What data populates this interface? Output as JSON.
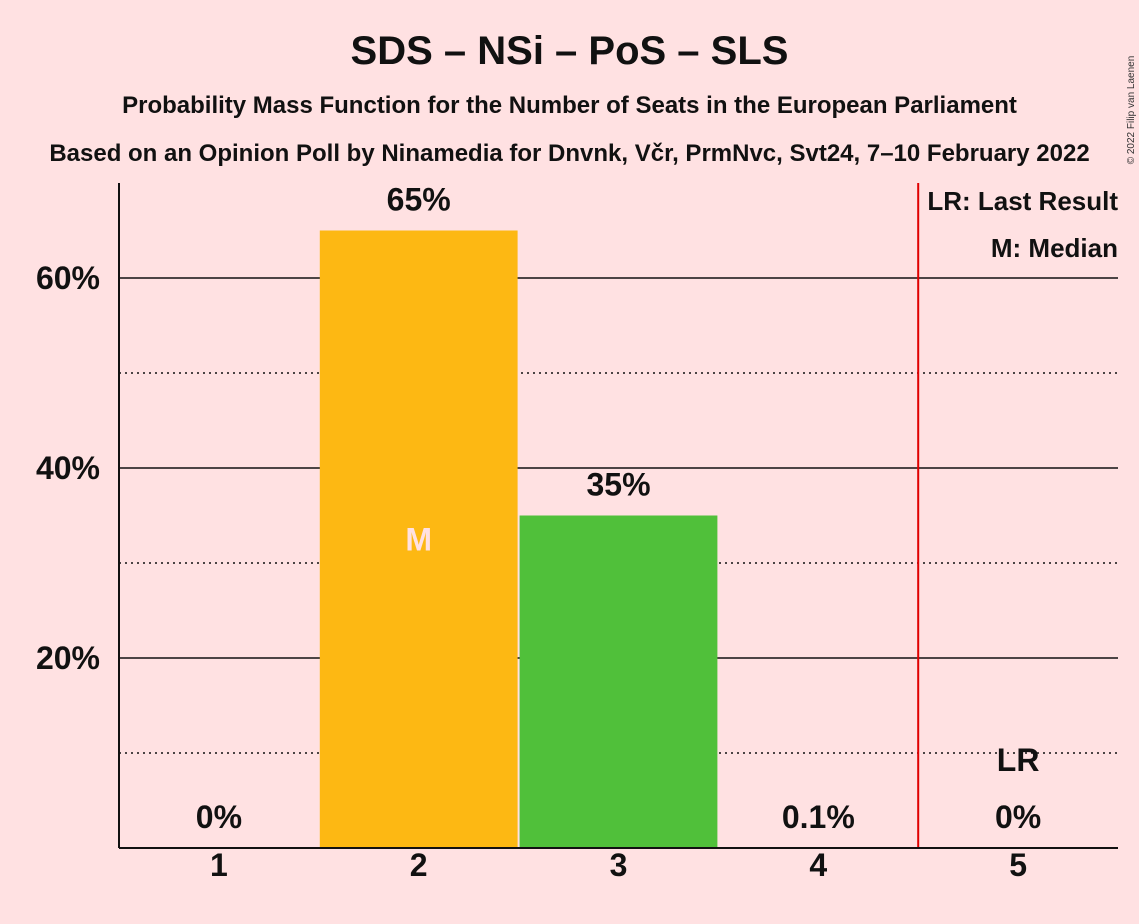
{
  "chart_data": {
    "type": "bar",
    "title": "SDS – NSi – PoS – SLS",
    "subtitle": "Probability Mass Function for the Number of Seats in the European Parliament",
    "source_line": "Based on an Opinion Poll by Ninamedia for Dnvnk, Včr, PrmNvc, Svt24, 7–10 February 2022",
    "copyright": "© 2022 Filip van Laenen",
    "categories": [
      "1",
      "2",
      "3",
      "4",
      "5"
    ],
    "values": [
      0,
      65,
      35,
      0.1,
      0
    ],
    "value_labels": [
      "0%",
      "65%",
      "35%",
      "0.1%",
      "0%"
    ],
    "bar_colors": [
      "#fdb813",
      "#fdb813",
      "#50c03a",
      "#50c03a",
      "#50c03a"
    ],
    "ylim": [
      0,
      70
    ],
    "yticks_major": [
      20,
      40,
      60
    ],
    "ytick_labels": [
      "20%",
      "40%",
      "60%"
    ],
    "yticks_minor": [
      10,
      30,
      50
    ],
    "median_category": "2",
    "median_mark": "M",
    "last_result_category": "5",
    "last_result_mark": "LR",
    "last_result_line_color": "#e00000",
    "legend": {
      "placement": "top-right",
      "last_result": "LR: Last Result",
      "median": "M: Median"
    },
    "grid": true
  }
}
